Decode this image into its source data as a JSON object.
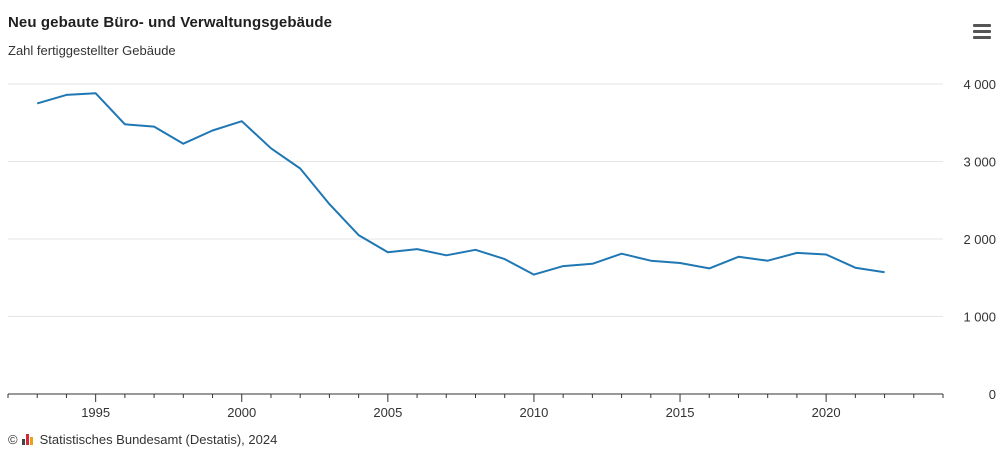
{
  "header": {
    "title": "Neu gebaute Büro- und Verwaltungsgebäude",
    "subtitle": "Zahl fertiggestellter Gebäude"
  },
  "footer": {
    "copyright_symbol": "©",
    "source": "Statistisches Bundesamt (Destatis), 2024"
  },
  "colors": {
    "line": "#1f77b4",
    "grid": "#e6e6e6",
    "axis": "#333333"
  },
  "icons": {
    "menu": "hamburger-menu-icon",
    "logo": "destatis-logo-icon"
  },
  "chart_data": {
    "type": "line",
    "title": "Neu gebaute Büro- und Verwaltungsgebäude",
    "subtitle": "Zahl fertiggestellter Gebäude",
    "xlabel": "",
    "ylabel": "",
    "xlim": [
      1992,
      2024
    ],
    "ylim": [
      0,
      4000
    ],
    "yticks": [
      0,
      1000,
      2000,
      3000,
      4000
    ],
    "ytick_labels": [
      "0",
      "1 000",
      "2 000",
      "3 000",
      "4 000"
    ],
    "xticks": [
      1995,
      2000,
      2005,
      2010,
      2015,
      2020
    ],
    "grid": true,
    "legend": "none",
    "series": [
      {
        "x": [
          1993,
          1994,
          1995,
          1996,
          1997,
          1998,
          1999,
          2000,
          2001,
          2002,
          2003,
          2004,
          2005,
          2006,
          2007,
          2008,
          2009,
          2010,
          2011,
          2012,
          2013,
          2014,
          2015,
          2016,
          2017,
          2018,
          2019,
          2020,
          2021,
          2022
        ],
        "values": [
          3750,
          3860,
          3880,
          3480,
          3450,
          3230,
          3400,
          3520,
          3170,
          2910,
          2450,
          2050,
          1830,
          1870,
          1790,
          1860,
          1740,
          1540,
          1650,
          1680,
          1810,
          1720,
          1690,
          1620,
          1770,
          1720,
          1820,
          1800,
          1630,
          1570
        ]
      }
    ]
  }
}
